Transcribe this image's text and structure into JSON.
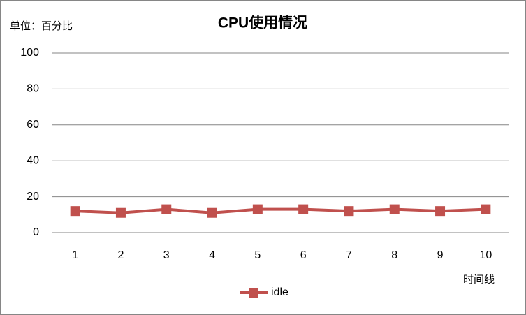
{
  "chart_data": {
    "type": "line",
    "title": "CPU使用情况",
    "y_label": "单位：百分比",
    "x_label": "时间线",
    "categories": [
      "1",
      "2",
      "3",
      "4",
      "5",
      "6",
      "7",
      "8",
      "9",
      "10"
    ],
    "series": [
      {
        "name": "idle",
        "color": "#c0504d",
        "values": [
          12,
          11,
          13,
          11,
          13,
          13,
          12,
          13,
          12,
          13
        ]
      }
    ],
    "ylim": [
      0,
      100
    ],
    "yticks": [
      0,
      20,
      40,
      60,
      80,
      100
    ],
    "grid": true,
    "legend": "bottom"
  }
}
